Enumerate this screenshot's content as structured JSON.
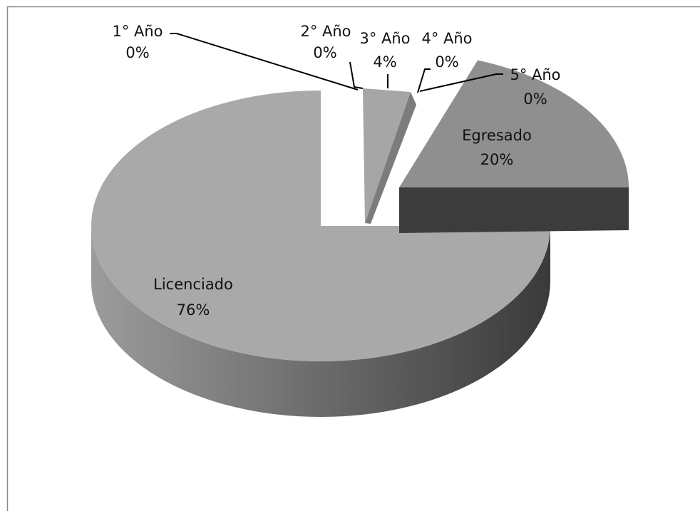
{
  "chart_data": {
    "type": "pie",
    "style": "3d-exploded",
    "legend": "none",
    "slices": [
      {
        "label": "1° Año",
        "value": 0,
        "percent_label": "0%"
      },
      {
        "label": "2° Año",
        "value": 0,
        "percent_label": "0%"
      },
      {
        "label": "3° Año",
        "value": 4,
        "percent_label": "4%"
      },
      {
        "label": "4° Año",
        "value": 0,
        "percent_label": "0%"
      },
      {
        "label": "5° Año",
        "value": 0,
        "percent_label": "0%"
      },
      {
        "label": "Egresado",
        "value": 20,
        "percent_label": "20%"
      },
      {
        "label": "Licenciado",
        "value": 76,
        "percent_label": "76%"
      }
    ],
    "colors": {
      "licenciado_top": "#a9a9a9",
      "egresado_top": "#8f8f8f",
      "egresado_side": "#3c3c3c",
      "anio3_top": "#a6a6a6",
      "anio3_side": "#7c7c7c",
      "side_light": "#9c9c9c",
      "side_dark": "#3a3a3a",
      "leader": "#000000",
      "frame": "#8c8c8c"
    }
  }
}
